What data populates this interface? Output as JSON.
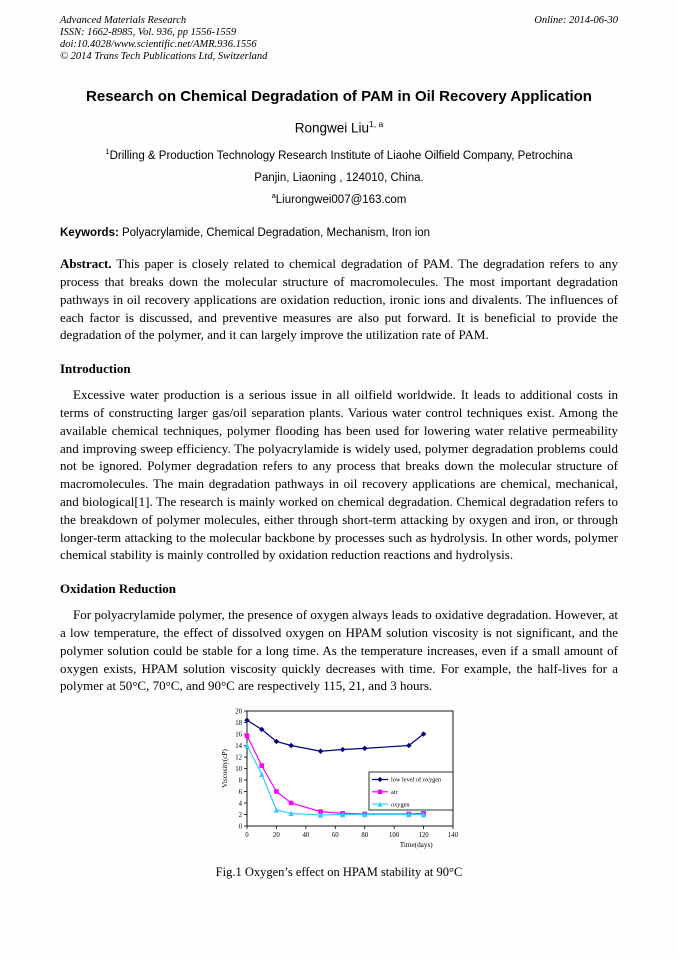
{
  "header": {
    "journal": "Advanced Materials Research",
    "issn_line": "ISSN: 1662-8985, Vol. 936, pp 1556-1559",
    "doi_line": "doi:10.4028/www.scientific.net/AMR.936.1556",
    "copyright_line": "© 2014 Trans Tech Publications Ltd, Switzerland",
    "online": "Online: 2014-06-30"
  },
  "title": "Research on Chemical Degradation of PAM in Oil Recovery Application",
  "author": {
    "name": "Rongwei Liu",
    "sup": "1, a"
  },
  "affiliation": {
    "sup1": "1",
    "line1": "Drilling & Production Technology Research Institute of Liaohe Oilfield Company, Petrochina",
    "line2": "Panjin, Liaoning , 124010, China.",
    "email_sup": "a",
    "email": "Liurongwei007@163.com"
  },
  "keywords": {
    "label": "Keywords:",
    "text": " Polyacrylamide, Chemical Degradation, Mechanism, Iron ion"
  },
  "abstract": {
    "label": "Abstract.",
    "text": " This paper is closely related to chemical degradation of PAM. The degradation refers to any process that breaks down the molecular structure of macromolecules. The most important degradation pathways in oil recovery applications are oxidation reduction, ironic ions and divalents. The influences of each factor is discussed, and preventive measures are also put forward. It is beneficial to provide the degradation of the polymer, and it can largely improve the utilization rate of PAM."
  },
  "sections": [
    {
      "heading": "Introduction",
      "text": "Excessive water production is a serious issue in all oilfield worldwide. It leads to additional costs in terms of constructing larger gas/oil separation plants. Various water control techniques exist. Among the available chemical techniques, polymer flooding has been used for lowering water relative permeability and improving sweep efficiency. The polyacrylamide is widely used, polymer degradation problems could not be ignored. Polymer degradation refers to any process that breaks down the molecular structure of macromolecules. The main degradation pathways in oil recovery applications are chemical, mechanical, and biological[1]. The research is mainly worked on chemical degradation. Chemical degradation refers to the breakdown of polymer molecules, either through short-term attacking by oxygen and iron, or through longer-term attacking to the molecular backbone by processes such as hydrolysis. In other words, polymer chemical stability is mainly controlled by oxidation reduction reactions and hydrolysis."
    },
    {
      "heading": "Oxidation Reduction",
      "text": "For polyacrylamide polymer, the presence of oxygen always leads to oxidative degradation. However, at a low temperature, the effect of dissolved oxygen on HPAM solution viscosity is not significant, and the polymer solution could be stable for a long time. As the temperature increases, even if a small amount of oxygen exists, HPAM solution viscosity quickly decreases with time. For example, the half-lives for a polymer at 50°C, 70°C, and 90°C are respectively 115, 21, and 3 hours."
    }
  ],
  "figure": {
    "caption": "Fig.1 Oxygen’s effect on HPAM stability at 90°C"
  },
  "chart_data": {
    "type": "line",
    "title": "",
    "xlabel": "Time(days)",
    "ylabel": "Viscosity(cP)",
    "x": [
      0,
      10,
      20,
      30,
      50,
      65,
      80,
      110,
      120
    ],
    "series": [
      {
        "name": "low level of oxygen",
        "color": "#000080",
        "marker": "diamond",
        "values": [
          18.4,
          16.8,
          14.7,
          14.0,
          13.0,
          13.3,
          13.5,
          14.0,
          16.0
        ]
      },
      {
        "name": "air",
        "color": "#ff00ff",
        "marker": "square",
        "values": [
          15.7,
          10.5,
          6.0,
          4.0,
          2.5,
          2.2,
          2.1,
          2.1,
          2.2
        ]
      },
      {
        "name": "oxygen",
        "color": "#33ccff",
        "marker": "triangle",
        "values": [
          14.0,
          9.0,
          2.8,
          2.2,
          1.9,
          2.0,
          2.0,
          2.0,
          2.0
        ]
      }
    ],
    "xlim": [
      0,
      140
    ],
    "xtick": 20,
    "ylim": [
      0,
      20
    ],
    "ytick": 2,
    "grid": false,
    "legend_position": "inside-right-center"
  }
}
